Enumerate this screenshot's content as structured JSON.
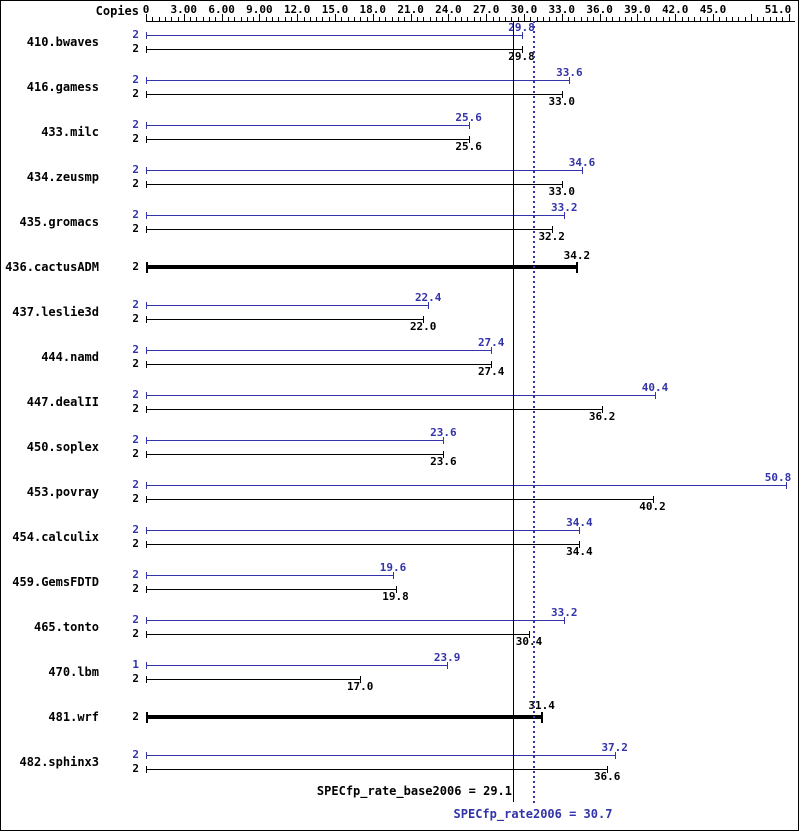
{
  "colors": {
    "peak": "#3333aa",
    "base": "#000000",
    "background": "#ffffff"
  },
  "chart_data": {
    "type": "bar",
    "orientation": "horizontal",
    "copies_header": "Copies",
    "x_axis": {
      "min": 0,
      "max": 51,
      "minor_tick_step": 0.5,
      "major_tick_labels": [
        {
          "value": 0,
          "label": "0"
        },
        {
          "value": 3,
          "label": "3.00"
        },
        {
          "value": 6,
          "label": "6.00"
        },
        {
          "value": 9,
          "label": "9.00"
        },
        {
          "value": 12,
          "label": "12.0"
        },
        {
          "value": 15,
          "label": "15.0"
        },
        {
          "value": 18,
          "label": "18.0"
        },
        {
          "value": 21,
          "label": "21.0"
        },
        {
          "value": 24,
          "label": "24.0"
        },
        {
          "value": 27,
          "label": "27.0"
        },
        {
          "value": 30,
          "label": "30.0"
        },
        {
          "value": 33,
          "label": "33.0"
        },
        {
          "value": 36,
          "label": "36.0"
        },
        {
          "value": 39,
          "label": "39.0"
        },
        {
          "value": 42,
          "label": "42.0"
        },
        {
          "value": 45,
          "label": "45.0"
        },
        {
          "value": 51,
          "label": "51.0"
        }
      ]
    },
    "benchmarks": [
      {
        "name": "410.bwaves",
        "bars": [
          {
            "series": "peak",
            "copies": "2",
            "value": 29.8
          },
          {
            "series": "base",
            "copies": "2",
            "value": 29.8
          }
        ]
      },
      {
        "name": "416.gamess",
        "bars": [
          {
            "series": "peak",
            "copies": "2",
            "value": 33.6
          },
          {
            "series": "base",
            "copies": "2",
            "value": 33.0
          }
        ]
      },
      {
        "name": "433.milc",
        "bars": [
          {
            "series": "peak",
            "copies": "2",
            "value": 25.6
          },
          {
            "series": "base",
            "copies": "2",
            "value": 25.6
          }
        ]
      },
      {
        "name": "434.zeusmp",
        "bars": [
          {
            "series": "peak",
            "copies": "2",
            "value": 34.6
          },
          {
            "series": "base",
            "copies": "2",
            "value": 33.0
          }
        ]
      },
      {
        "name": "435.gromacs",
        "bars": [
          {
            "series": "peak",
            "copies": "2",
            "value": 33.2
          },
          {
            "series": "base",
            "copies": "2",
            "value": 32.2
          }
        ]
      },
      {
        "name": "436.cactusADM",
        "bars": [
          {
            "series": "basepeak",
            "copies": "2",
            "value": 34.2,
            "bold": true
          }
        ]
      },
      {
        "name": "437.leslie3d",
        "bars": [
          {
            "series": "peak",
            "copies": "2",
            "value": 22.4
          },
          {
            "series": "base",
            "copies": "2",
            "value": 22.0
          }
        ]
      },
      {
        "name": "444.namd",
        "bars": [
          {
            "series": "peak",
            "copies": "2",
            "value": 27.4
          },
          {
            "series": "base",
            "copies": "2",
            "value": 27.4
          }
        ]
      },
      {
        "name": "447.dealII",
        "bars": [
          {
            "series": "peak",
            "copies": "2",
            "value": 40.4
          },
          {
            "series": "base",
            "copies": "2",
            "value": 36.2
          }
        ]
      },
      {
        "name": "450.soplex",
        "bars": [
          {
            "series": "peak",
            "copies": "2",
            "value": 23.6
          },
          {
            "series": "base",
            "copies": "2",
            "value": 23.6
          }
        ]
      },
      {
        "name": "453.povray",
        "bars": [
          {
            "series": "peak",
            "copies": "2",
            "value": 50.8
          },
          {
            "series": "base",
            "copies": "2",
            "value": 40.2
          }
        ]
      },
      {
        "name": "454.calculix",
        "bars": [
          {
            "series": "peak",
            "copies": "2",
            "value": 34.4
          },
          {
            "series": "base",
            "copies": "2",
            "value": 34.4
          }
        ]
      },
      {
        "name": "459.GemsFDTD",
        "bars": [
          {
            "series": "peak",
            "copies": "2",
            "value": 19.6
          },
          {
            "series": "base",
            "copies": "2",
            "value": 19.8
          }
        ]
      },
      {
        "name": "465.tonto",
        "bars": [
          {
            "series": "peak",
            "copies": "2",
            "value": 33.2
          },
          {
            "series": "base",
            "copies": "2",
            "value": 30.4
          }
        ]
      },
      {
        "name": "470.lbm",
        "bars": [
          {
            "series": "peak",
            "copies": "1",
            "value": 23.9
          },
          {
            "series": "base",
            "copies": "2",
            "value": 17.0
          }
        ]
      },
      {
        "name": "481.wrf",
        "bars": [
          {
            "series": "basepeak",
            "copies": "2",
            "value": 31.4,
            "bold": true
          }
        ]
      },
      {
        "name": "482.sphinx3",
        "bars": [
          {
            "series": "peak",
            "copies": "2",
            "value": 37.2
          },
          {
            "series": "base",
            "copies": "2",
            "value": 36.6
          }
        ]
      }
    ],
    "means": {
      "base": {
        "label": "SPECfp_rate_base2006 = 29.1",
        "value": 29.1
      },
      "peak": {
        "label": "SPECfp_rate2006 = 30.7",
        "value": 30.7
      }
    }
  }
}
